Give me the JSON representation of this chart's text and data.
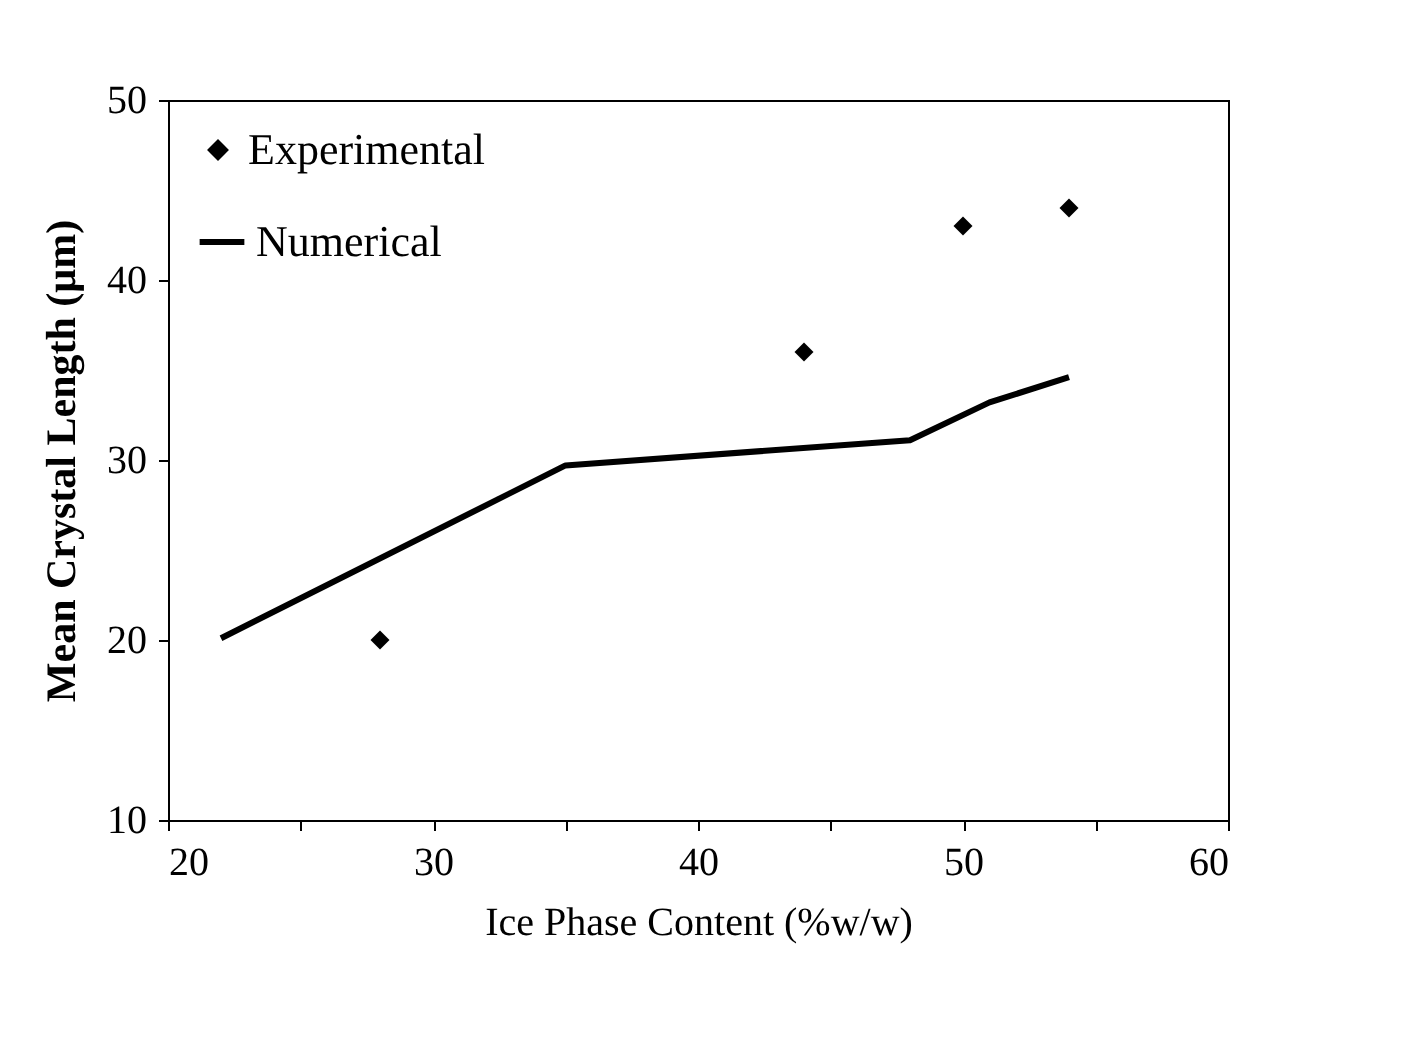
{
  "chart_data": {
    "type": "line",
    "xlabel": "Ice Phase Content (%w/w)",
    "ylabel": "Mean Crystal Length (μm)",
    "xlim": [
      20,
      60
    ],
    "xticks": [
      20,
      {
        "value": 25,
        "label": null
      },
      30,
      {
        "value": 35,
        "label": null
      },
      40,
      {
        "value": 45,
        "label": null
      },
      50,
      {
        "value": 55,
        "label": null
      },
      60
    ],
    "ylim": [
      10,
      50
    ],
    "yticks": [
      10,
      20,
      30,
      40,
      50
    ],
    "grid": false,
    "legend": "top left",
    "series": [
      {
        "name": "Experimental",
        "type": "scatter",
        "marker": "diamond",
        "color": "#000000",
        "x": [
          28,
          44,
          50,
          54
        ],
        "values": [
          20,
          36,
          43,
          44
        ]
      },
      {
        "name": "Numerical",
        "line_style": "solid",
        "color": "#000000",
        "x": [
          22,
          35,
          48,
          51,
          54
        ],
        "values": [
          20.1,
          29.7,
          31.1,
          33.2,
          34.6
        ]
      }
    ]
  }
}
